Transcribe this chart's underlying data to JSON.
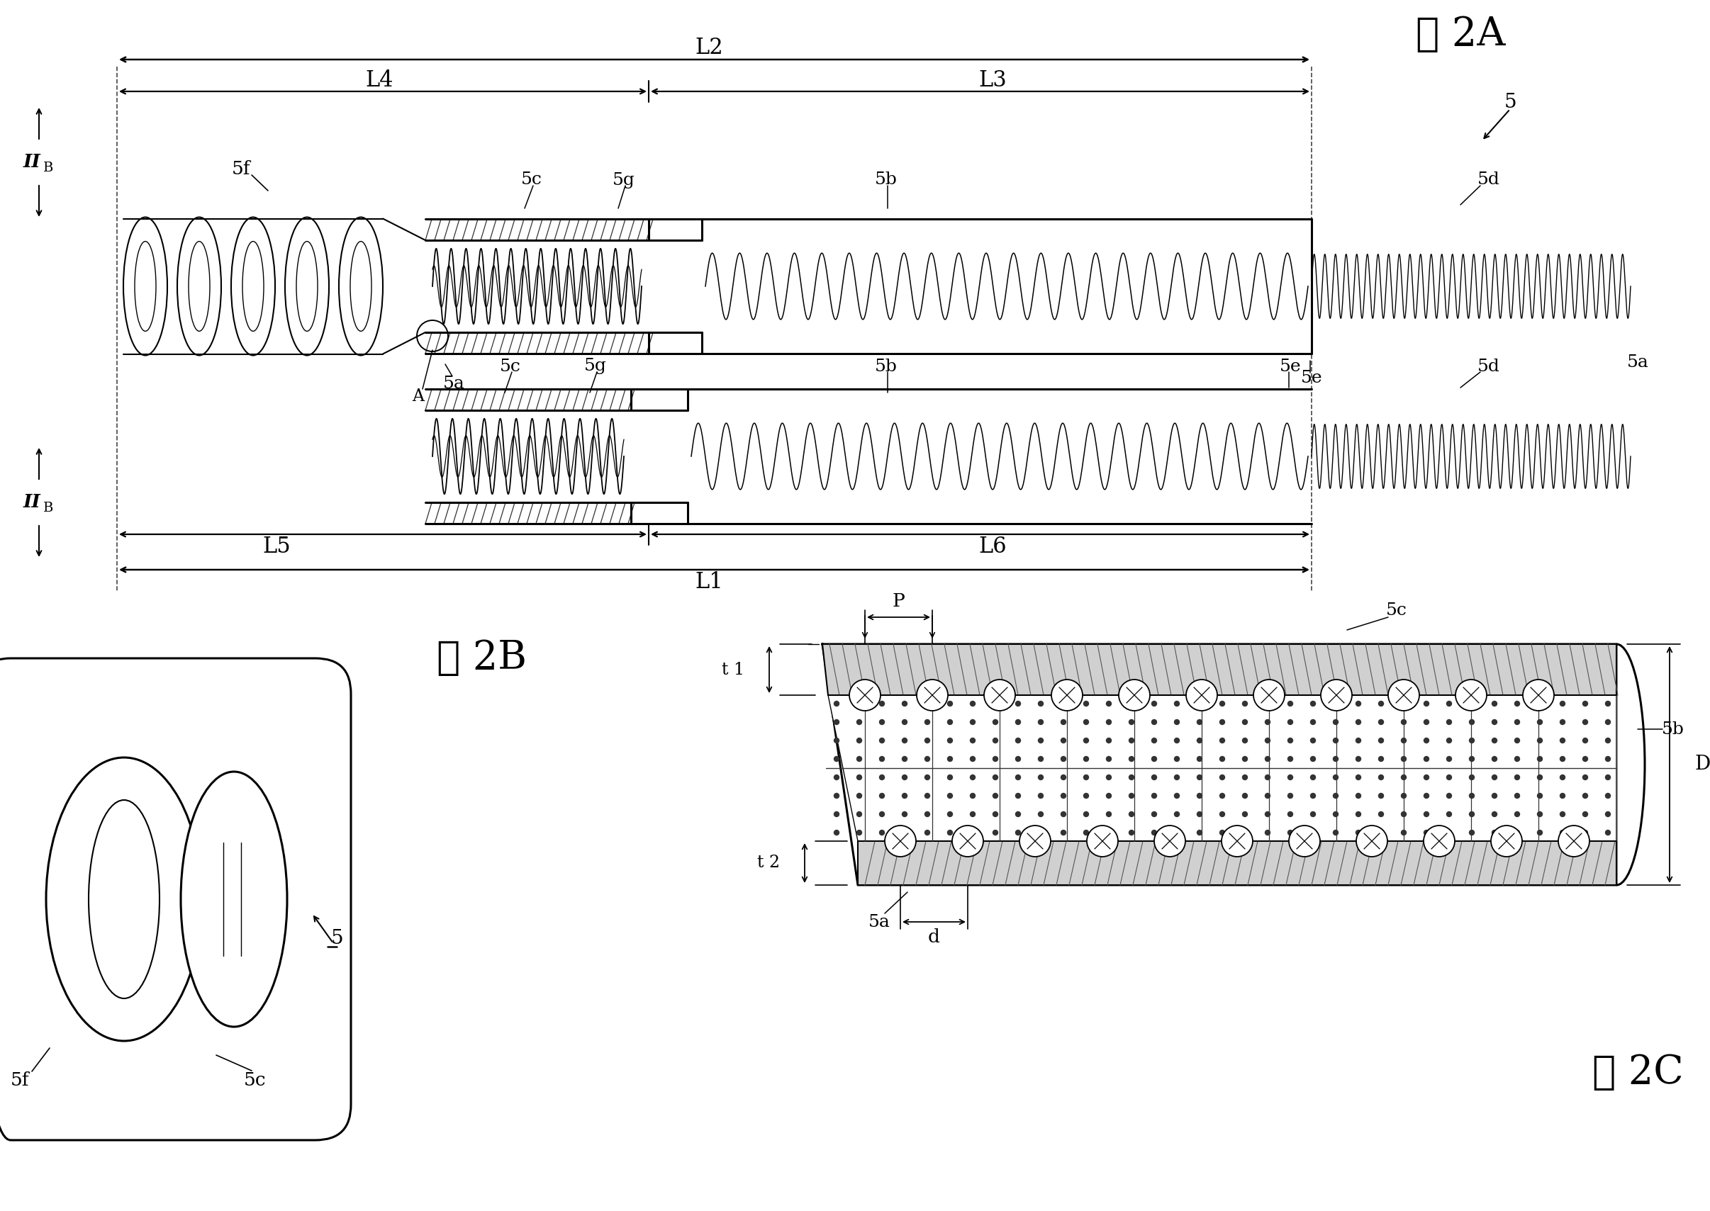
{
  "bg_color": "#ffffff",
  "line_color": "#000000",
  "title_2A": "图 2A",
  "title_2B": "图 2B",
  "title_2C": "图 2C",
  "fig_width": 24.12,
  "fig_height": 17.09
}
